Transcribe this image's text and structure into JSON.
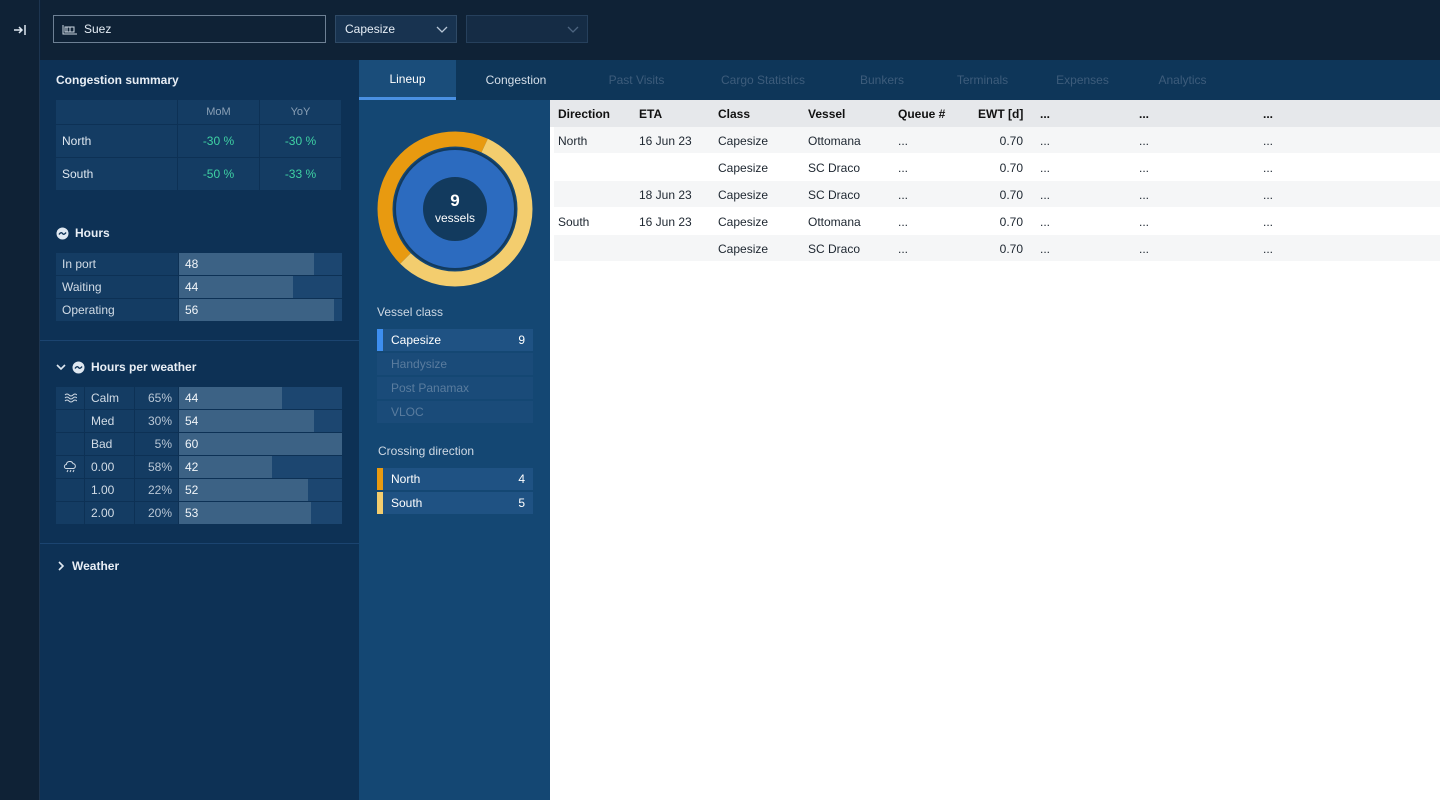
{
  "topbar": {
    "search_value": "Suez",
    "class_select": "Capesize",
    "empty_select": ""
  },
  "summary": {
    "title": "Congestion summary",
    "col_mom": "MoM",
    "col_yoy": "YoY",
    "rows": [
      {
        "label": "North",
        "mom": "-30 %",
        "yoy": "-30 %"
      },
      {
        "label": "South",
        "mom": "-50 %",
        "yoy": "-33 %"
      }
    ]
  },
  "hours": {
    "title": "Hours",
    "rows": [
      {
        "label": "In port",
        "value": "48",
        "fill": 0.83
      },
      {
        "label": "Waiting",
        "value": "44",
        "fill": 0.7
      },
      {
        "label": "Operating",
        "value": "56",
        "fill": 0.95
      }
    ]
  },
  "weather_hours": {
    "title": "Hours per weather",
    "rows": [
      {
        "icon": "waves-icon",
        "label": "Calm",
        "pct": "65%",
        "value": "44",
        "fill": 0.63
      },
      {
        "icon": "",
        "label": "Med",
        "pct": "30%",
        "value": "54",
        "fill": 0.83
      },
      {
        "icon": "",
        "label": "Bad",
        "pct": "5%",
        "value": "60",
        "fill": 1.0
      },
      {
        "icon": "cloud-rain-icon",
        "label": "0.00",
        "pct": "58%",
        "value": "42",
        "fill": 0.57
      },
      {
        "icon": "",
        "label": "1.00",
        "pct": "22%",
        "value": "52",
        "fill": 0.79
      },
      {
        "icon": "",
        "label": "2.00",
        "pct": "20%",
        "value": "53",
        "fill": 0.81
      }
    ]
  },
  "weather": {
    "title": "Weather"
  },
  "tabs": [
    {
      "label": "Lineup",
      "state": "active"
    },
    {
      "label": "Congestion",
      "state": "normal"
    },
    {
      "label": "Past Visits",
      "state": "disabled"
    },
    {
      "label": "Cargo Statistics",
      "state": "disabled"
    },
    {
      "label": "Bunkers",
      "state": "disabled"
    },
    {
      "label": "Terminals",
      "state": "disabled"
    },
    {
      "label": "Expenses",
      "state": "disabled"
    },
    {
      "label": "Analytics",
      "state": "disabled"
    }
  ],
  "donut": {
    "count": "9",
    "unit": "vessels",
    "north": 4,
    "south": 5,
    "north_color": "#e89a10",
    "south_color": "#f3cd6e",
    "inner_color": "#2c6bbf"
  },
  "vessel_class": {
    "label": "Vessel class",
    "items": [
      {
        "name": "Capesize",
        "count": "9",
        "active": true
      },
      {
        "name": "Handysize",
        "count": "",
        "active": false
      },
      {
        "name": "Post Panamax",
        "count": "",
        "active": false
      },
      {
        "name": "VLOC",
        "count": "",
        "active": false
      }
    ]
  },
  "crossing": {
    "label": "Crossing direction",
    "items": [
      {
        "name": "North",
        "count": "4",
        "color": "#e89a10"
      },
      {
        "name": "South",
        "count": "5",
        "color": "#f3cd6e"
      }
    ]
  },
  "table": {
    "headers": [
      "Direction",
      "ETA",
      "Class",
      "Vessel",
      "Queue #",
      "EWT [d]",
      "...",
      "...",
      "..."
    ],
    "rows": [
      [
        "North",
        "16 Jun 23",
        "Capesize",
        "Ottomana",
        "...",
        "0.70",
        "...",
        "...",
        "..."
      ],
      [
        "",
        "",
        "Capesize",
        "SC Draco",
        "...",
        "0.70",
        "...",
        "...",
        "..."
      ],
      [
        "",
        "18 Jun 23",
        "Capesize",
        "SC Draco",
        "...",
        "0.70",
        "...",
        "...",
        "..."
      ],
      [
        "South",
        "16 Jun 23",
        "Capesize",
        "Ottomana",
        "...",
        "0.70",
        "...",
        "...",
        "..."
      ],
      [
        "",
        "",
        "Capesize",
        "SC Draco",
        "...",
        "0.70",
        "...",
        "...",
        "..."
      ]
    ]
  }
}
